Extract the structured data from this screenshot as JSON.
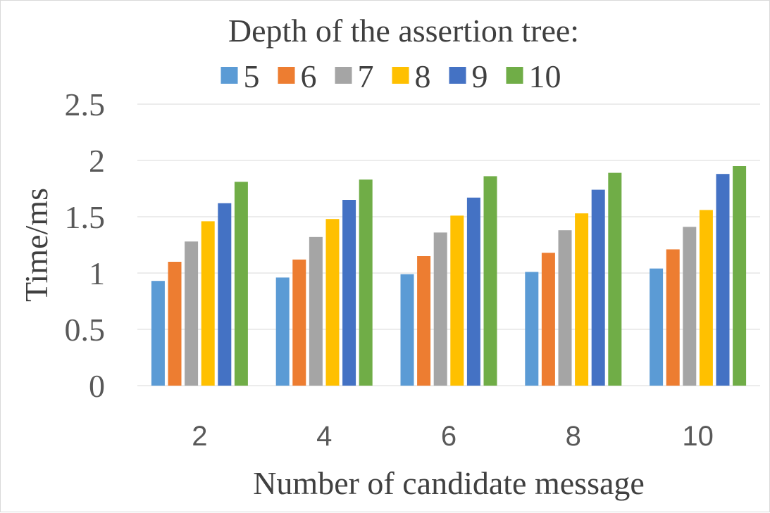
{
  "chart_data": {
    "type": "bar",
    "title": "Depth of the assertion tree:",
    "xlabel": "Number of candidate message",
    "ylabel": "Time/ms",
    "categories": [
      "2",
      "4",
      "6",
      "8",
      "10"
    ],
    "ylim": [
      0,
      2.5
    ],
    "yticks": [
      "0",
      "0.5",
      "1",
      "1.5",
      "2",
      "2.5"
    ],
    "grid": true,
    "legend_position": "top",
    "series": [
      {
        "name": "5",
        "color": "#5b9bd5",
        "values": [
          0.93,
          0.96,
          0.99,
          1.01,
          1.04
        ]
      },
      {
        "name": "6",
        "color": "#ed7d31",
        "values": [
          1.1,
          1.12,
          1.15,
          1.18,
          1.21
        ]
      },
      {
        "name": "7",
        "color": "#a5a5a5",
        "values": [
          1.28,
          1.32,
          1.36,
          1.38,
          1.41
        ]
      },
      {
        "name": "8",
        "color": "#ffc000",
        "values": [
          1.46,
          1.48,
          1.51,
          1.53,
          1.56
        ]
      },
      {
        "name": "9",
        "color": "#4472c4",
        "values": [
          1.62,
          1.65,
          1.67,
          1.74,
          1.88
        ]
      },
      {
        "name": "10",
        "color": "#70ad47",
        "values": [
          1.81,
          1.83,
          1.86,
          1.89,
          1.95
        ]
      }
    ]
  }
}
